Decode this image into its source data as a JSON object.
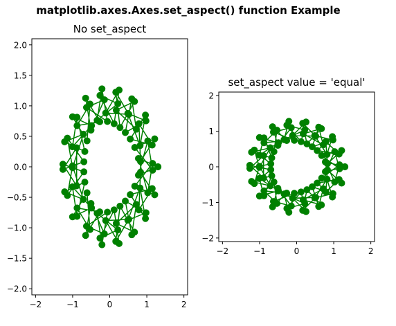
{
  "figure": {
    "suptitle": "matplotlib.axes.Axes.set_aspect() function Example",
    "line_color": "#008000",
    "marker_color": "#008000"
  },
  "chart_data": [
    {
      "type": "line",
      "title": "No set_aspect",
      "xlim": [
        -2.1,
        2.1
      ],
      "ylim": [
        -2.1,
        2.1
      ],
      "xticks": [
        -2,
        -1,
        0,
        1,
        2
      ],
      "yticks": [
        -2.0,
        -1.5,
        -1.0,
        -0.5,
        0.0,
        0.5,
        1.0,
        1.5,
        2.0
      ],
      "xtick_labels": [
        "−2",
        "−1",
        "0",
        "1",
        "2"
      ],
      "ytick_labels": [
        "−2.0",
        "−1.5",
        "−1.0",
        "−0.5",
        "0.0",
        "0.5",
        "1.0",
        "1.5",
        "2.0"
      ],
      "grid": false,
      "series_formula": "x = cos(t) + 0.3 cos(k t), y = sin(t) + 0.3 sin(k t), t = linspace(0, 2π, 100), k = 61",
      "markers": "o"
    },
    {
      "type": "line",
      "title": "set_aspect value = 'equal'",
      "xlim": [
        -2.1,
        2.1
      ],
      "ylim": [
        -2.1,
        2.1
      ],
      "xticks": [
        -2,
        -1,
        0,
        1,
        2
      ],
      "yticks": [
        -2,
        -1,
        0,
        1,
        2
      ],
      "xtick_labels": [
        "−2",
        "−1",
        "0",
        "1",
        "2"
      ],
      "ytick_labels": [
        "−2",
        "−1",
        "0",
        "1",
        "2"
      ],
      "grid": false,
      "aspect": "equal",
      "series_formula": "x = cos(t) + 0.3 cos(k t), y = sin(t) + 0.3 sin(k t), t = linspace(0, 2π, 100), k = 61",
      "markers": "o"
    }
  ]
}
